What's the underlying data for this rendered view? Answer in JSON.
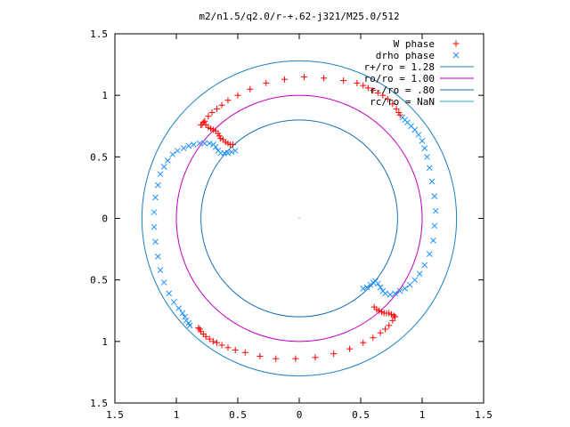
{
  "chart_data": {
    "type": "scatter",
    "title": "m2/n1.5/q2.0/r-+.62-j321/M25.0/512",
    "xlabel": "",
    "ylabel": "",
    "xlim": [
      -1.5,
      1.5
    ],
    "ylim": [
      -1.5,
      1.5
    ],
    "x_tick_values": [
      -1.5,
      -1,
      -0.5,
      0,
      0.5,
      1,
      1.5
    ],
    "x_tick_labels": [
      "1.5",
      "1",
      "0.5",
      "0",
      "0.5",
      "1",
      "1.5"
    ],
    "y_tick_values": [
      1.5,
      1,
      0.5,
      0,
      -0.5,
      -1,
      -1.5
    ],
    "y_tick_labels": [
      "1.5",
      "1",
      "0.5",
      "0",
      "0.5",
      "1",
      "1.5"
    ],
    "grid": false,
    "legend_position": "top-right",
    "colors": {
      "w_phase": "#ff0000",
      "drho_phase": "#1e90ff",
      "r_plus": "#1a80c0",
      "ro": "#c000c0",
      "r_minus": "#1a70b8",
      "rc": "#20b0c0"
    },
    "legend": [
      {
        "label": "W phase",
        "marker": "plus",
        "color": "#ff0000"
      },
      {
        "label": "drho phase",
        "marker": "cross",
        "color": "#1e90ff"
      },
      {
        "label": "r+/ro = 1.28",
        "marker": "line",
        "color": "#1a80c0"
      },
      {
        "label": "ro/ro = 1.00",
        "marker": "line",
        "color": "#c000c0"
      },
      {
        "label": "r-/ro = .80",
        "marker": "line",
        "color": "#1a70b8"
      },
      {
        "label": "rc/ro = NaN",
        "marker": "line",
        "color": "#20b0c0"
      }
    ],
    "circles": [
      {
        "name": "r+/ro = 1.28",
        "radius": 1.28,
        "color": "#1a80c0"
      },
      {
        "name": "ro/ro = 1.00",
        "radius": 1.0,
        "color": "#c000c0"
      },
      {
        "name": "r-/ro = .80",
        "radius": 0.8,
        "color": "#1a70b8"
      }
    ],
    "series": [
      {
        "name": "W phase",
        "color": "#ff0000",
        "points": [
          [
            -0.79,
            0.76
          ],
          [
            -0.77,
            0.79
          ],
          [
            -0.74,
            0.83
          ],
          [
            -0.71,
            0.86
          ],
          [
            -0.67,
            0.89
          ],
          [
            -0.63,
            0.92
          ],
          [
            -0.58,
            0.96
          ],
          [
            -0.5,
            1.0
          ],
          [
            -0.4,
            1.05
          ],
          [
            -0.27,
            1.1
          ],
          [
            -0.12,
            1.13
          ],
          [
            0.04,
            1.15
          ],
          [
            0.2,
            1.14
          ],
          [
            0.36,
            1.12
          ],
          [
            0.47,
            1.1
          ],
          [
            0.52,
            1.08
          ],
          [
            0.56,
            1.06
          ],
          [
            0.6,
            1.04
          ],
          [
            0.64,
            1.02
          ],
          [
            0.68,
            1.0
          ],
          [
            0.72,
            0.97
          ],
          [
            0.76,
            0.93
          ],
          [
            0.79,
            0.89
          ],
          [
            0.81,
            0.86
          ],
          [
            0.82,
            0.84
          ],
          [
            -0.8,
            0.76
          ],
          [
            -0.78,
            0.78
          ],
          [
            -0.76,
            0.76
          ],
          [
            -0.74,
            0.74
          ],
          [
            -0.72,
            0.73
          ],
          [
            -0.7,
            0.72
          ],
          [
            -0.68,
            0.71
          ],
          [
            -0.66,
            0.69
          ],
          [
            -0.65,
            0.67
          ],
          [
            -0.64,
            0.65
          ],
          [
            -0.62,
            0.64
          ],
          [
            -0.6,
            0.62
          ],
          [
            -0.58,
            0.61
          ],
          [
            -0.56,
            0.6
          ],
          [
            -0.54,
            0.6
          ],
          [
            0.61,
            -0.72
          ],
          [
            0.63,
            -0.74
          ],
          [
            0.65,
            -0.75
          ],
          [
            0.67,
            -0.76
          ],
          [
            0.69,
            -0.77
          ],
          [
            0.71,
            -0.77
          ],
          [
            0.73,
            -0.77
          ],
          [
            0.75,
            -0.78
          ],
          [
            0.77,
            -0.79
          ],
          [
            0.78,
            -0.8
          ],
          [
            0.76,
            -0.83
          ],
          [
            0.73,
            -0.87
          ],
          [
            0.7,
            -0.9
          ],
          [
            0.66,
            -0.93
          ],
          [
            0.6,
            -0.97
          ],
          [
            0.52,
            -1.01
          ],
          [
            0.41,
            -1.06
          ],
          [
            0.28,
            -1.1
          ],
          [
            0.13,
            -1.13
          ],
          [
            -0.03,
            -1.14
          ],
          [
            -0.19,
            -1.14
          ],
          [
            -0.32,
            -1.12
          ],
          [
            -0.44,
            -1.09
          ],
          [
            -0.52,
            -1.07
          ],
          [
            -0.58,
            -1.05
          ],
          [
            -0.63,
            -1.03
          ],
          [
            -0.67,
            -1.01
          ],
          [
            -0.7,
            -1.0
          ],
          [
            -0.73,
            -0.98
          ],
          [
            -0.76,
            -0.96
          ],
          [
            -0.78,
            -0.94
          ],
          [
            -0.8,
            -0.92
          ],
          [
            -0.81,
            -0.9
          ],
          [
            -0.82,
            -0.89
          ]
        ]
      },
      {
        "name": "drho phase",
        "color": "#1e90ff",
        "points": [
          [
            -0.52,
            0.55
          ],
          [
            -0.55,
            0.54
          ],
          [
            -0.58,
            0.53
          ],
          [
            -0.61,
            0.53
          ],
          [
            -0.64,
            0.53
          ],
          [
            -0.66,
            0.55
          ],
          [
            -0.68,
            0.58
          ],
          [
            -0.7,
            0.6
          ],
          [
            -0.73,
            0.61
          ],
          [
            -0.77,
            0.61
          ],
          [
            -0.81,
            0.61
          ],
          [
            -0.86,
            0.6
          ],
          [
            -0.9,
            0.59
          ],
          [
            -0.94,
            0.57
          ],
          [
            -0.99,
            0.55
          ],
          [
            -1.03,
            0.52
          ],
          [
            -1.07,
            0.47
          ],
          [
            -1.1,
            0.42
          ],
          [
            -1.13,
            0.36
          ],
          [
            -1.15,
            0.27
          ],
          [
            -1.17,
            0.17
          ],
          [
            -1.18,
            0.05
          ],
          [
            -1.18,
            -0.07
          ],
          [
            -1.17,
            -0.19
          ],
          [
            -1.15,
            -0.31
          ],
          [
            -1.13,
            -0.42
          ],
          [
            -1.1,
            -0.52
          ],
          [
            -1.06,
            -0.61
          ],
          [
            -1.02,
            -0.68
          ],
          [
            -0.98,
            -0.73
          ],
          [
            -0.95,
            -0.77
          ],
          [
            -0.93,
            -0.8
          ],
          [
            -0.92,
            -0.83
          ],
          [
            -0.9,
            -0.85
          ],
          [
            -0.89,
            -0.87
          ],
          [
            0.52,
            -0.57
          ],
          [
            0.55,
            -0.56
          ],
          [
            0.58,
            -0.54
          ],
          [
            0.6,
            -0.52
          ],
          [
            0.62,
            -0.51
          ],
          [
            0.64,
            -0.53
          ],
          [
            0.66,
            -0.56
          ],
          [
            0.68,
            -0.59
          ],
          [
            0.7,
            -0.61
          ],
          [
            0.74,
            -0.62
          ],
          [
            0.78,
            -0.61
          ],
          [
            0.82,
            -0.59
          ],
          [
            0.86,
            -0.57
          ],
          [
            0.9,
            -0.54
          ],
          [
            0.94,
            -0.5
          ],
          [
            0.98,
            -0.45
          ],
          [
            1.02,
            -0.38
          ],
          [
            1.06,
            -0.29
          ],
          [
            1.09,
            -0.18
          ],
          [
            1.1,
            -0.06
          ],
          [
            1.11,
            0.06
          ],
          [
            1.1,
            0.18
          ],
          [
            1.08,
            0.3
          ],
          [
            1.06,
            0.41
          ],
          [
            1.04,
            0.5
          ],
          [
            1.02,
            0.57
          ],
          [
            1.0,
            0.63
          ],
          [
            0.97,
            0.68
          ],
          [
            0.94,
            0.72
          ],
          [
            0.91,
            0.75
          ],
          [
            0.88,
            0.78
          ],
          [
            0.86,
            0.8
          ],
          [
            0.84,
            0.82
          ]
        ]
      }
    ]
  }
}
